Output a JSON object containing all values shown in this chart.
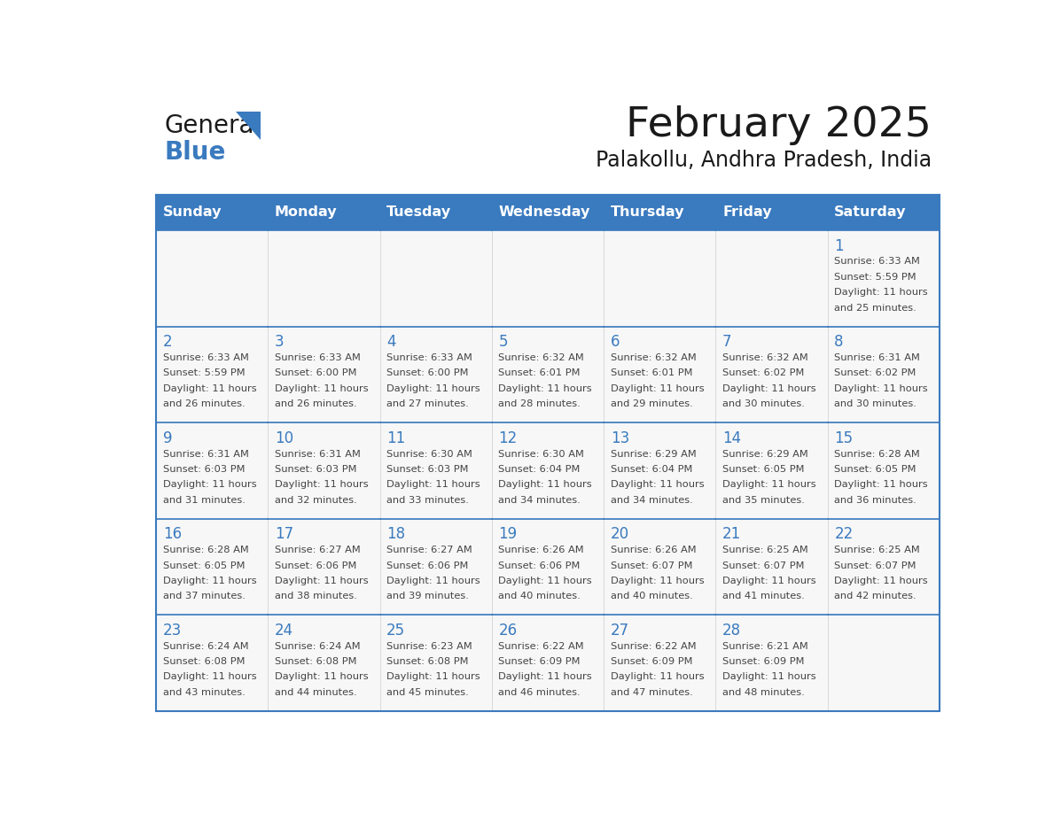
{
  "title": "February 2025",
  "subtitle": "Palakollu, Andhra Pradesh, India",
  "days_of_week": [
    "Sunday",
    "Monday",
    "Tuesday",
    "Wednesday",
    "Thursday",
    "Friday",
    "Saturday"
  ],
  "header_bg": "#3a7abf",
  "header_text": "#ffffff",
  "border_color": "#3a7abf",
  "day_number_color": "#3a7abf",
  "cell_text_color": "#444444",
  "title_color": "#1a1a1a",
  "subtitle_color": "#1a1a1a",
  "logo_general_color": "#1a1a1a",
  "logo_blue_color": "#3a7abf",
  "cell_bg": "#f7f7f7",
  "calendar_data": [
    [
      null,
      null,
      null,
      null,
      null,
      null,
      {
        "day": 1,
        "sunrise": "6:33 AM",
        "sunset": "5:59 PM",
        "daylight": "11 hours and 25 minutes."
      }
    ],
    [
      {
        "day": 2,
        "sunrise": "6:33 AM",
        "sunset": "5:59 PM",
        "daylight": "11 hours and 26 minutes."
      },
      {
        "day": 3,
        "sunrise": "6:33 AM",
        "sunset": "6:00 PM",
        "daylight": "11 hours and 26 minutes."
      },
      {
        "day": 4,
        "sunrise": "6:33 AM",
        "sunset": "6:00 PM",
        "daylight": "11 hours and 27 minutes."
      },
      {
        "day": 5,
        "sunrise": "6:32 AM",
        "sunset": "6:01 PM",
        "daylight": "11 hours and 28 minutes."
      },
      {
        "day": 6,
        "sunrise": "6:32 AM",
        "sunset": "6:01 PM",
        "daylight": "11 hours and 29 minutes."
      },
      {
        "day": 7,
        "sunrise": "6:32 AM",
        "sunset": "6:02 PM",
        "daylight": "11 hours and 30 minutes."
      },
      {
        "day": 8,
        "sunrise": "6:31 AM",
        "sunset": "6:02 PM",
        "daylight": "11 hours and 30 minutes."
      }
    ],
    [
      {
        "day": 9,
        "sunrise": "6:31 AM",
        "sunset": "6:03 PM",
        "daylight": "11 hours and 31 minutes."
      },
      {
        "day": 10,
        "sunrise": "6:31 AM",
        "sunset": "6:03 PM",
        "daylight": "11 hours and 32 minutes."
      },
      {
        "day": 11,
        "sunrise": "6:30 AM",
        "sunset": "6:03 PM",
        "daylight": "11 hours and 33 minutes."
      },
      {
        "day": 12,
        "sunrise": "6:30 AM",
        "sunset": "6:04 PM",
        "daylight": "11 hours and 34 minutes."
      },
      {
        "day": 13,
        "sunrise": "6:29 AM",
        "sunset": "6:04 PM",
        "daylight": "11 hours and 34 minutes."
      },
      {
        "day": 14,
        "sunrise": "6:29 AM",
        "sunset": "6:05 PM",
        "daylight": "11 hours and 35 minutes."
      },
      {
        "day": 15,
        "sunrise": "6:28 AM",
        "sunset": "6:05 PM",
        "daylight": "11 hours and 36 minutes."
      }
    ],
    [
      {
        "day": 16,
        "sunrise": "6:28 AM",
        "sunset": "6:05 PM",
        "daylight": "11 hours and 37 minutes."
      },
      {
        "day": 17,
        "sunrise": "6:27 AM",
        "sunset": "6:06 PM",
        "daylight": "11 hours and 38 minutes."
      },
      {
        "day": 18,
        "sunrise": "6:27 AM",
        "sunset": "6:06 PM",
        "daylight": "11 hours and 39 minutes."
      },
      {
        "day": 19,
        "sunrise": "6:26 AM",
        "sunset": "6:06 PM",
        "daylight": "11 hours and 40 minutes."
      },
      {
        "day": 20,
        "sunrise": "6:26 AM",
        "sunset": "6:07 PM",
        "daylight": "11 hours and 40 minutes."
      },
      {
        "day": 21,
        "sunrise": "6:25 AM",
        "sunset": "6:07 PM",
        "daylight": "11 hours and 41 minutes."
      },
      {
        "day": 22,
        "sunrise": "6:25 AM",
        "sunset": "6:07 PM",
        "daylight": "11 hours and 42 minutes."
      }
    ],
    [
      {
        "day": 23,
        "sunrise": "6:24 AM",
        "sunset": "6:08 PM",
        "daylight": "11 hours and 43 minutes."
      },
      {
        "day": 24,
        "sunrise": "6:24 AM",
        "sunset": "6:08 PM",
        "daylight": "11 hours and 44 minutes."
      },
      {
        "day": 25,
        "sunrise": "6:23 AM",
        "sunset": "6:08 PM",
        "daylight": "11 hours and 45 minutes."
      },
      {
        "day": 26,
        "sunrise": "6:22 AM",
        "sunset": "6:09 PM",
        "daylight": "11 hours and 46 minutes."
      },
      {
        "day": 27,
        "sunrise": "6:22 AM",
        "sunset": "6:09 PM",
        "daylight": "11 hours and 47 minutes."
      },
      {
        "day": 28,
        "sunrise": "6:21 AM",
        "sunset": "6:09 PM",
        "daylight": "11 hours and 48 minutes."
      },
      null
    ]
  ]
}
